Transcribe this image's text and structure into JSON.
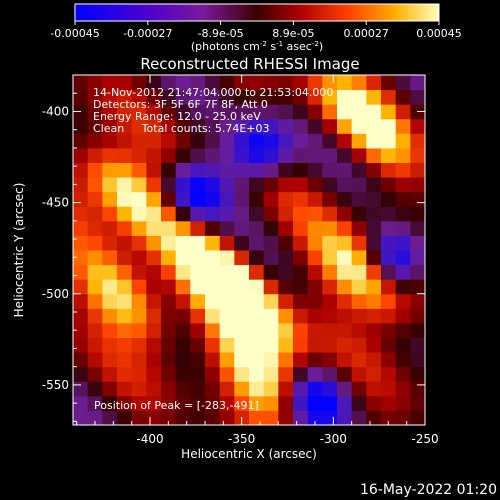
{
  "colorbar": {
    "ticks": [
      "-0.00045",
      "-0.00027",
      "-8.9e-05",
      "8.9e-05",
      "0.00027",
      "0.00045"
    ],
    "units_line": "(photons cm",
    "units_sup1": "-2",
    "units_mid1": " s",
    "units_sup2": "-1",
    "units_mid2": " asec",
    "units_sup3": "-2",
    "units_end": ")"
  },
  "annotations": {
    "line1": "14-Nov-2012 21:47:04.000 to 21:53:04.000",
    "line2": "Detectors: 3F 5F 6F 7F 8F, Att 0",
    "line3": "Energy Range: 12.0 - 25.0 keV",
    "line4": "Clean     Total counts: 5.74E+03",
    "peak": "Position of Peak = [-283,-491]"
  },
  "footer": {
    "timestamp": "16-May-2022 01:20"
  },
  "chart_data": {
    "type": "heatmap",
    "title": "Reconstructed RHESSI Image",
    "xlabel": "Heliocentric X (arcsec)",
    "ylabel": "Heliocentric Y (arcsec)",
    "xlim": [
      -442,
      -250
    ],
    "ylim": [
      -572,
      -380
    ],
    "xticks": [
      -400,
      -350,
      -300,
      -250
    ],
    "yticks": [
      -400,
      -450,
      -500,
      -550
    ],
    "colorscale_range": [
      -0.00045,
      0.00045
    ],
    "peak": {
      "x": -283,
      "y": -491
    },
    "bright_sources": [
      {
        "x": -413,
        "y": -444,
        "level": 1.0
      },
      {
        "x": -283,
        "y": -491,
        "level": 1.0
      },
      {
        "x": -415,
        "y": -502,
        "level": 0.85
      },
      {
        "x": -345,
        "y": -510,
        "level": 0.95
      },
      {
        "x": -340,
        "y": -545,
        "level": 0.85
      },
      {
        "x": -285,
        "y": -405,
        "level": 0.8
      },
      {
        "x": -365,
        "y": -485,
        "level": 0.75
      }
    ],
    "dark_sources": [
      {
        "x": -375,
        "y": -445
      },
      {
        "x": -265,
        "y": -480
      },
      {
        "x": -310,
        "y": -560
      },
      {
        "x": -340,
        "y": -420
      }
    ]
  }
}
